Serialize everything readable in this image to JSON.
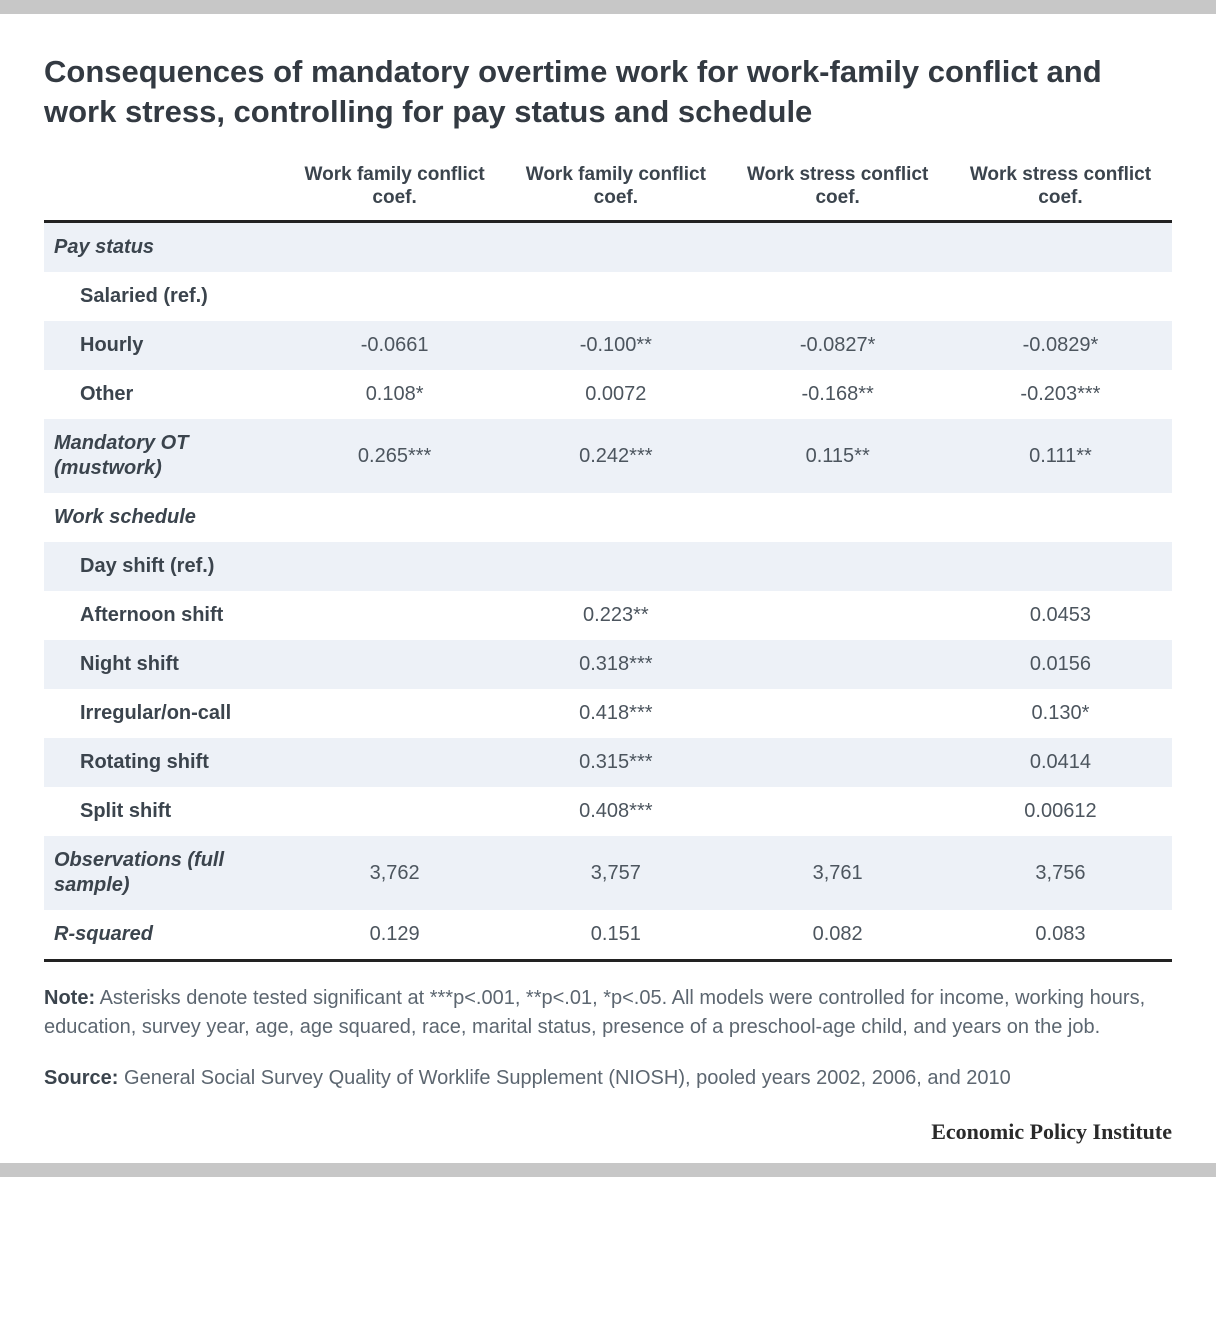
{
  "title": "Consequences of mandatory overtime work for work-family conflict and work stress, controlling for pay status and schedule",
  "columns": [
    "Work family conflict coef.",
    "Work family conflict coef.",
    "Work stress conflict coef.",
    "Work stress conflict coef."
  ],
  "rows": [
    {
      "label": "Pay status",
      "type": "section",
      "shade": true,
      "values": [
        "",
        "",
        "",
        ""
      ]
    },
    {
      "label": "Salaried (ref.)",
      "type": "indent",
      "shade": false,
      "values": [
        "",
        "",
        "",
        ""
      ]
    },
    {
      "label": "Hourly",
      "type": "indent",
      "shade": true,
      "values": [
        "-0.0661",
        "-0.100**",
        "-0.0827*",
        "-0.0829*"
      ]
    },
    {
      "label": "Other",
      "type": "indent",
      "shade": false,
      "values": [
        "0.108*",
        "0.0072",
        "-0.168**",
        "-0.203***"
      ]
    },
    {
      "label": "Mandatory OT (mustwork)",
      "type": "section",
      "shade": true,
      "values": [
        "0.265***",
        "0.242***",
        "0.115**",
        "0.111**"
      ]
    },
    {
      "label": "Work schedule",
      "type": "section",
      "shade": false,
      "values": [
        "",
        "",
        "",
        ""
      ]
    },
    {
      "label": "Day shift (ref.)",
      "type": "indent",
      "shade": true,
      "values": [
        "",
        "",
        "",
        ""
      ]
    },
    {
      "label": "Afternoon shift",
      "type": "indent",
      "shade": false,
      "values": [
        "",
        "0.223**",
        "",
        "0.0453"
      ]
    },
    {
      "label": "Night shift",
      "type": "indent",
      "shade": true,
      "values": [
        "",
        "0.318***",
        "",
        "0.0156"
      ]
    },
    {
      "label": "Irregular/on-call",
      "type": "indent",
      "shade": false,
      "values": [
        "",
        "0.418***",
        "",
        "0.130*"
      ]
    },
    {
      "label": "Rotating shift",
      "type": "indent",
      "shade": true,
      "values": [
        "",
        "0.315***",
        "",
        "0.0414"
      ]
    },
    {
      "label": "Split shift",
      "type": "indent",
      "shade": false,
      "values": [
        "",
        "0.408***",
        "",
        "0.00612"
      ]
    },
    {
      "label": "Observations (full sample)",
      "type": "section",
      "shade": true,
      "values": [
        "3,762",
        "3,757",
        "3,761",
        "3,756"
      ]
    },
    {
      "label": "R-squared",
      "type": "section",
      "shade": false,
      "values": [
        "0.129",
        "0.151",
        "0.082",
        "0.083"
      ],
      "last": true
    }
  ],
  "note_label": "Note:",
  "note_text": " Asterisks denote tested significant at ***p<.001, **p<.01, *p<.05. All models were controlled for income, working hours, education, survey year, age, age squared, race, marital status, presence of a preschool-age child, and years on the job.",
  "source_label": "Source:",
  "source_text": " General Social Survey Quality of Worklife Supplement (NIOSH), pooled years 2002, 2006, and 2010",
  "credit": "Economic Policy Institute",
  "style": {
    "shade_color": "#edf1f7",
    "text_color": "#4c555e",
    "heading_color": "#333a42",
    "border_color": "#222222",
    "top_bar_color": "#c7c7c7"
  }
}
